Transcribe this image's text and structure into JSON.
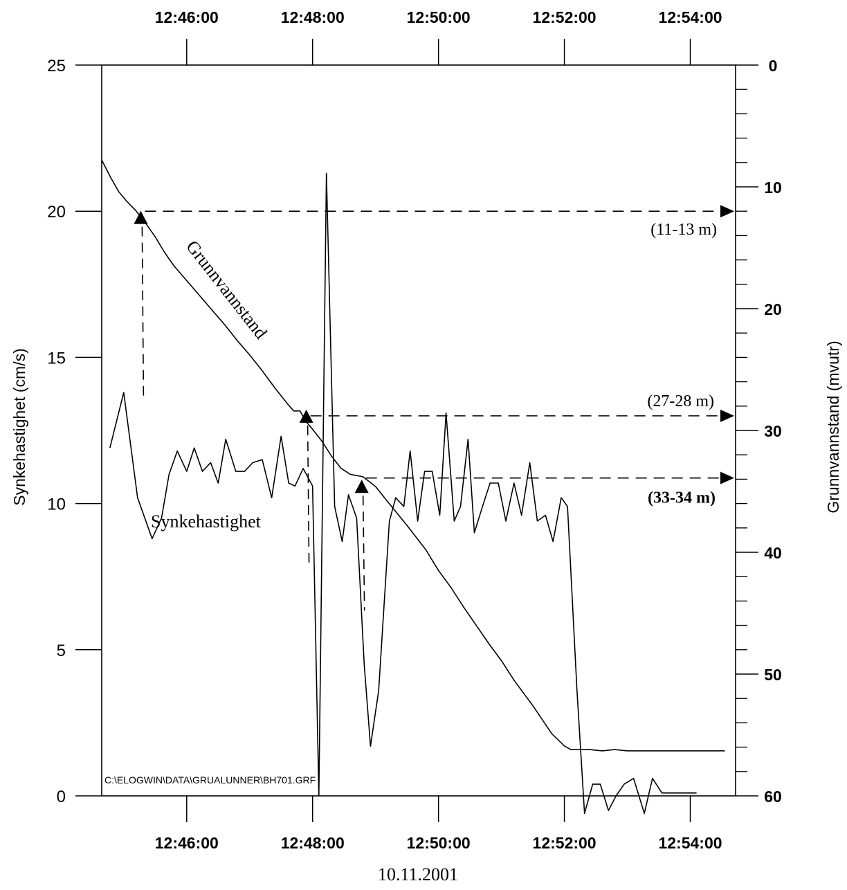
{
  "chart_data": {
    "type": "line",
    "date": "10.11.2001",
    "file_path": "C:\\ELOGWIN\\DATA\\GRUALUNNER\\BH701.GRF",
    "left_axis": {
      "label": "Synkehastighet (cm/s)",
      "range": [
        0,
        25
      ],
      "ticks": [
        0,
        5,
        10,
        15,
        20,
        25
      ]
    },
    "right_axis": {
      "label": "Grunnvannstand (mvutr)",
      "range": [
        0,
        60
      ],
      "inverted": true,
      "ticks": [
        0,
        10,
        20,
        30,
        40,
        50,
        60
      ]
    },
    "time_axis": {
      "tick_labels": [
        "12:46:00",
        "12:48:00",
        "12:50:00",
        "12:52:00",
        "12:54:00"
      ],
      "tick_values_min": [
        46,
        48,
        50,
        52,
        54
      ],
      "range_min": [
        44.65,
        54.72
      ]
    },
    "series": [
      {
        "name": "Synkehastighet",
        "axis": "left",
        "x_min": [
          44.78,
          45.0,
          45.22,
          45.45,
          45.6,
          45.72,
          45.85,
          46.0,
          46.12,
          46.25,
          46.38,
          46.5,
          46.62,
          46.78,
          46.92,
          47.05,
          47.2,
          47.35,
          47.5,
          47.62,
          47.72,
          47.85,
          48.0,
          48.1,
          48.22,
          48.35,
          48.47,
          48.57,
          48.7,
          48.82,
          48.92,
          49.05,
          49.22,
          49.32,
          49.45,
          49.55,
          49.67,
          49.78,
          49.9,
          50.02,
          50.12,
          50.25,
          50.35,
          50.47,
          50.57,
          50.7,
          50.82,
          50.95,
          51.07,
          51.2,
          51.32,
          51.45,
          51.57,
          51.7,
          51.82,
          51.95,
          52.05,
          52.2,
          52.32,
          52.45,
          52.57,
          52.7,
          52.82,
          52.95,
          53.1,
          53.27,
          53.4,
          53.55,
          53.68,
          53.82,
          54.1
        ],
        "y": [
          11.9,
          13.8,
          10.2,
          8.8,
          9.5,
          11.0,
          11.8,
          11.1,
          11.9,
          11.1,
          11.4,
          10.7,
          12.2,
          11.1,
          11.1,
          11.4,
          11.5,
          10.2,
          12.3,
          10.7,
          10.6,
          11.2,
          10.6,
          0.0,
          21.3,
          9.9,
          8.7,
          10.3,
          9.5,
          4.5,
          1.7,
          3.6,
          9.4,
          10.2,
          9.9,
          11.8,
          9.4,
          11.1,
          11.1,
          9.6,
          13.1,
          9.4,
          9.9,
          12.2,
          9.0,
          9.9,
          10.7,
          10.7,
          9.4,
          10.7,
          9.6,
          11.4,
          9.4,
          9.6,
          8.7,
          10.2,
          9.9,
          3.6,
          -0.6,
          0.4,
          0.4,
          -0.5,
          0.0,
          0.4,
          0.6,
          -0.6,
          0.6,
          0.1,
          0.1,
          0.1,
          0.1
        ]
      },
      {
        "name": "Grunnvannstand",
        "axis": "right",
        "x_min": [
          44.65,
          44.8,
          44.92,
          45.05,
          45.2,
          45.35,
          45.5,
          45.65,
          45.8,
          46.0,
          46.2,
          46.4,
          46.6,
          46.8,
          47.0,
          47.2,
          47.4,
          47.6,
          47.7,
          47.8,
          47.9,
          48.0,
          48.15,
          48.3,
          48.45,
          48.6,
          48.8,
          49.0,
          49.2,
          49.5,
          49.8,
          50.0,
          50.2,
          50.4,
          50.6,
          50.8,
          51.0,
          51.2,
          51.5,
          51.8,
          52.0,
          52.1,
          52.2,
          52.4,
          52.6,
          52.8,
          53.0,
          53.2,
          53.4,
          54.55
        ],
        "y": [
          7.8,
          9.3,
          10.4,
          11.2,
          12.0,
          13.0,
          14.1,
          15.4,
          16.5,
          17.7,
          18.9,
          20.1,
          21.3,
          22.6,
          23.8,
          25.1,
          26.5,
          27.8,
          28.4,
          28.4,
          29.3,
          29.9,
          30.9,
          32.1,
          33.1,
          33.6,
          33.8,
          34.6,
          35.9,
          37.8,
          39.8,
          41.5,
          42.9,
          44.5,
          46.0,
          47.5,
          48.9,
          50.5,
          52.6,
          54.9,
          55.9,
          56.2,
          56.2,
          56.2,
          56.3,
          56.2,
          56.3,
          56.3,
          56.3,
          56.3
        ]
      }
    ],
    "series_labels": [
      {
        "text": "Grunnvannstand"
      },
      {
        "text": "Synkehastighet"
      }
    ],
    "annotations": [
      {
        "text": "(11-13 m)",
        "bold": false,
        "marker_x_min": 45.27,
        "marker_y": 19.8,
        "depth": 12.0
      },
      {
        "text": "(27-28 m)",
        "bold": false,
        "marker_x_min": 47.9,
        "marker_y": 13.0,
        "depth": 28.8
      },
      {
        "text": "(33-34 m)",
        "bold": true,
        "marker_x_min": 48.78,
        "marker_y": 10.6,
        "depth": 33.9
      }
    ]
  }
}
